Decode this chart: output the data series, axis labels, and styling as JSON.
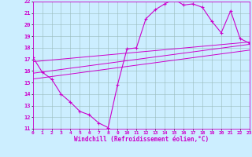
{
  "xlabel": "Windchill (Refroidissement éolien,°C)",
  "bg_color": "#cceeff",
  "line_color": "#cc00cc",
  "grid_color": "#99bbbb",
  "xmin": 0,
  "xmax": 23,
  "ymin": 11,
  "ymax": 22,
  "line1_x": [
    0,
    1,
    2,
    3,
    4,
    5,
    6,
    7,
    8,
    9,
    10,
    11,
    12,
    13,
    14,
    15,
    16,
    17,
    18,
    19,
    20,
    21,
    22,
    23
  ],
  "line1_y": [
    17.2,
    15.9,
    15.3,
    14.0,
    13.3,
    12.5,
    12.2,
    11.5,
    11.1,
    14.8,
    17.9,
    18.0,
    20.5,
    21.3,
    21.8,
    22.2,
    21.7,
    21.8,
    21.5,
    20.3,
    19.3,
    21.2,
    18.8,
    18.4
  ],
  "line2_x": [
    0,
    23
  ],
  "line2_y": [
    16.8,
    18.5
  ],
  "line3_x": [
    0,
    23
  ],
  "line3_y": [
    15.8,
    18.3
  ],
  "line4_x": [
    0,
    23
  ],
  "line4_y": [
    15.3,
    17.8
  ]
}
